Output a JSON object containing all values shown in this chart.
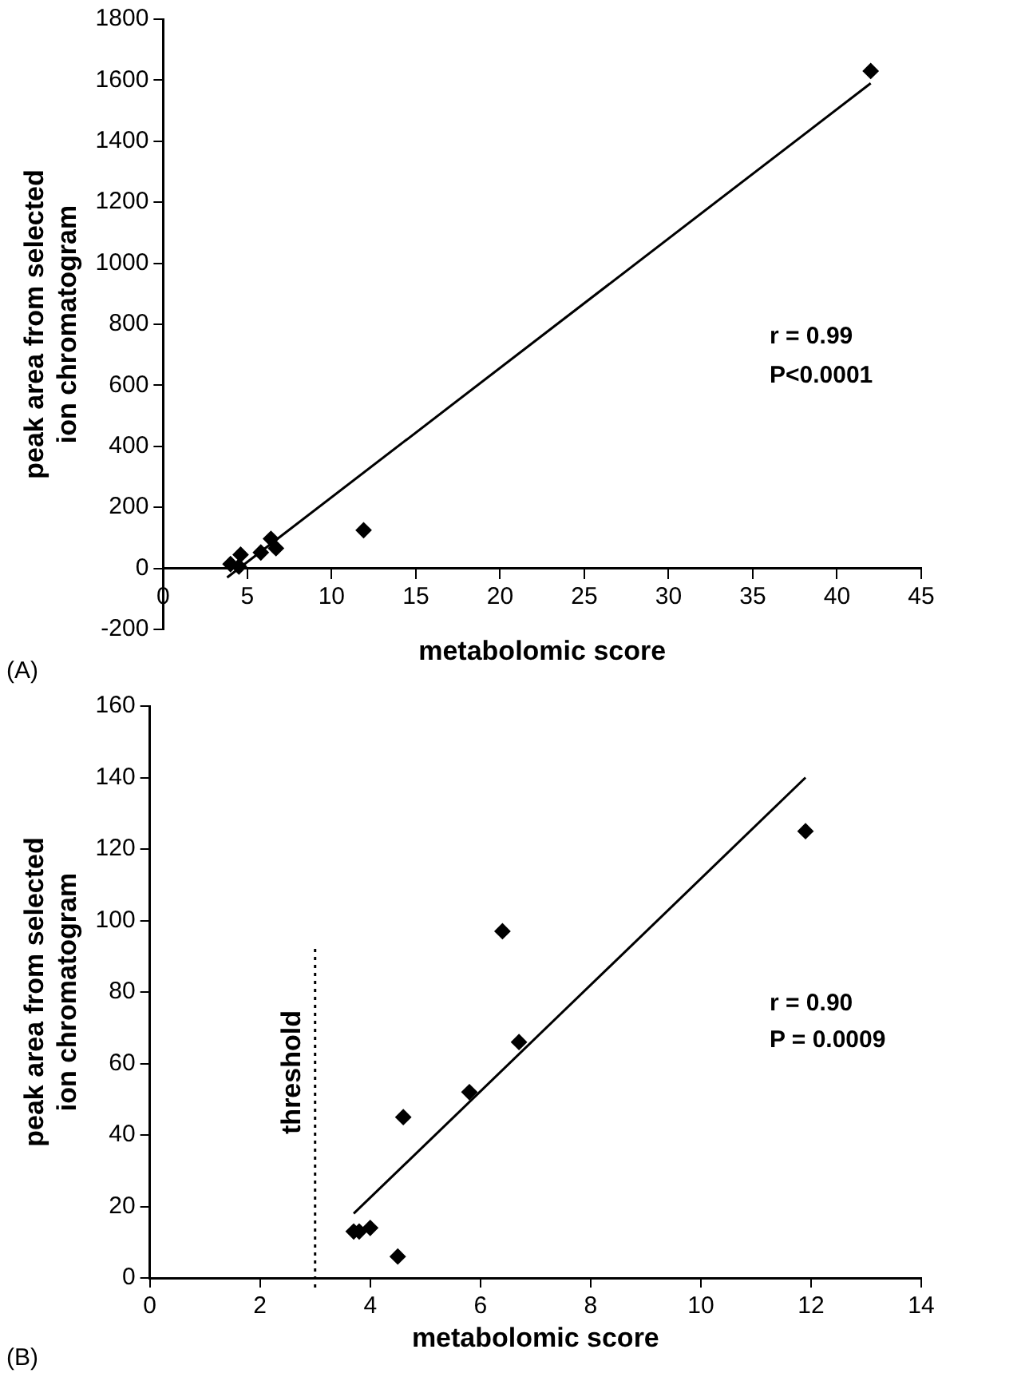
{
  "chart_data": [
    {
      "type": "scatter",
      "xlabel": "metabolomic score",
      "ylabel": "peak area from selected ion chromatogram",
      "xlim": [
        0,
        45
      ],
      "xticks": [
        0,
        5,
        10,
        15,
        20,
        25,
        30,
        35,
        40,
        45
      ],
      "ylim": [
        -200,
        1800
      ],
      "yticks": [
        -200,
        0,
        200,
        400,
        600,
        800,
        1000,
        1200,
        1400,
        1600,
        1800
      ],
      "grid": false,
      "legend": false,
      "series": [
        {
          "type": "scatter",
          "marker": "diamond",
          "color": "#000000",
          "x": [
            4.0,
            4.5,
            4.6,
            5.8,
            6.4,
            6.7,
            11.9,
            42
          ],
          "values": [
            14,
            6,
            45,
            52,
            97,
            66,
            125,
            1630
          ]
        },
        {
          "type": "line",
          "color": "#000000",
          "x": [
            3.8,
            42
          ],
          "values": [
            -30,
            1590
          ]
        }
      ],
      "annotations": [
        "r = 0.99",
        "P<0.0001",
        "(A)"
      ]
    },
    {
      "type": "scatter",
      "xlabel": "metabolomic score",
      "ylabel": "peak area from selected ion chromatogram",
      "xlim": [
        0,
        14
      ],
      "xticks": [
        0,
        2,
        4,
        6,
        8,
        10,
        12,
        14
      ],
      "ylim": [
        0,
        160
      ],
      "yticks": [
        0,
        20,
        40,
        60,
        80,
        100,
        120,
        140,
        160
      ],
      "grid": false,
      "legend": false,
      "series": [
        {
          "type": "scatter",
          "marker": "diamond",
          "color": "#000000",
          "x": [
            3.7,
            3.8,
            4.0,
            4.5,
            4.6,
            5.8,
            6.4,
            6.7,
            11.9
          ],
          "values": [
            13,
            13,
            14,
            6,
            45,
            52,
            97,
            66,
            125
          ]
        },
        {
          "type": "line",
          "color": "#000000",
          "x": [
            3.7,
            11.9
          ],
          "values": [
            18,
            140
          ]
        }
      ],
      "ref_lines": [
        {
          "axis": "x",
          "value": 3,
          "label": "threshold",
          "line_style": "dotted"
        }
      ],
      "annotations": [
        "r = 0.90",
        "P = 0.0009",
        "(B)"
      ]
    }
  ]
}
